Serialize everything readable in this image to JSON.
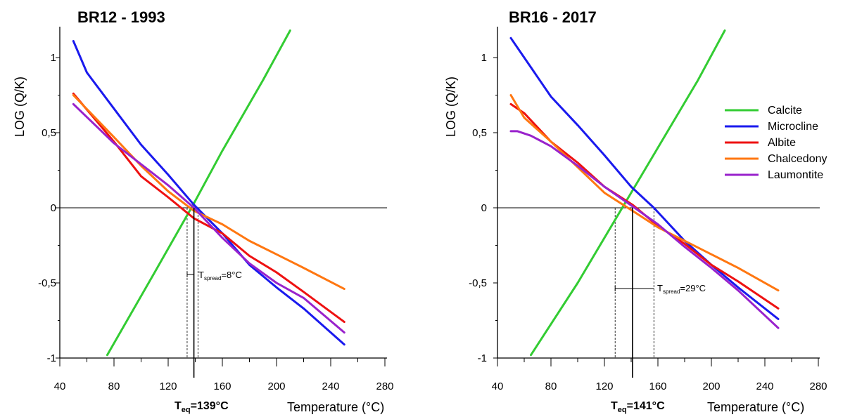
{
  "chart_data": [
    {
      "type": "line",
      "title": "BR12 - 1993",
      "xlabel": "Temperature (°C)",
      "ylabel": "LOG (Q/K)",
      "xlim": [
        40,
        280
      ],
      "ylim": [
        -1,
        1.2
      ],
      "xticks": [
        "40",
        "80",
        "120",
        "160",
        "200",
        "240",
        "280"
      ],
      "yticks": [
        "-1",
        "-0,5",
        "0",
        "0,5",
        "1"
      ],
      "series": [
        {
          "name": "Calcite",
          "color": "#33cc33",
          "points": [
            [
              75,
              -0.98
            ],
            [
              110,
              -0.43
            ],
            [
              139,
              0.03
            ],
            [
              160,
              0.38
            ],
            [
              190,
              0.85
            ],
            [
              210,
              1.18
            ]
          ]
        },
        {
          "name": "Microcline",
          "color": "#1a1aee",
          "points": [
            [
              50,
              1.11
            ],
            [
              60,
              0.9
            ],
            [
              80,
              0.66
            ],
            [
              100,
              0.42
            ],
            [
              120,
              0.22
            ],
            [
              139,
              0.02
            ],
            [
              160,
              -0.17
            ],
            [
              180,
              -0.38
            ],
            [
              200,
              -0.53
            ],
            [
              220,
              -0.67
            ],
            [
              250,
              -0.91
            ]
          ]
        },
        {
          "name": "Albite",
          "color": "#ee1111",
          "points": [
            [
              50,
              0.76
            ],
            [
              80,
              0.44
            ],
            [
              100,
              0.21
            ],
            [
              120,
              0.07
            ],
            [
              139,
              -0.07
            ],
            [
              160,
              -0.17
            ],
            [
              180,
              -0.32
            ],
            [
              200,
              -0.43
            ],
            [
              220,
              -0.56
            ],
            [
              250,
              -0.76
            ]
          ]
        },
        {
          "name": "Chalcedony",
          "color": "#ff7711",
          "points": [
            [
              50,
              0.75
            ],
            [
              80,
              0.47
            ],
            [
              100,
              0.28
            ],
            [
              120,
              0.11
            ],
            [
              139,
              -0.02
            ],
            [
              160,
              -0.11
            ],
            [
              180,
              -0.22
            ],
            [
              200,
              -0.31
            ],
            [
              220,
              -0.4
            ],
            [
              250,
              -0.54
            ]
          ]
        },
        {
          "name": "Laumontite",
          "color": "#9922cc",
          "points": [
            [
              50,
              0.69
            ],
            [
              80,
              0.43
            ],
            [
              100,
              0.29
            ],
            [
              120,
              0.15
            ],
            [
              139,
              0.0
            ],
            [
              160,
              -0.2
            ],
            [
              180,
              -0.37
            ],
            [
              200,
              -0.5
            ],
            [
              220,
              -0.6
            ],
            [
              250,
              -0.83
            ]
          ]
        }
      ],
      "teq_value": 139,
      "teq_label": "eq",
      "teq_text": "=139°C",
      "spread_range": [
        134,
        142
      ],
      "spread_label": "spread",
      "spread_text": "=8°C",
      "legend": false
    },
    {
      "type": "line",
      "title": "BR16 - 2017",
      "xlabel": "Temperature (°C)",
      "ylabel": "LOG (Q/K)",
      "xlim": [
        40,
        280
      ],
      "ylim": [
        -1,
        1.2
      ],
      "xticks": [
        "40",
        "80",
        "120",
        "160",
        "200",
        "240",
        "280"
      ],
      "yticks": [
        "-1",
        "-0,5",
        "0",
        "0,5",
        "1"
      ],
      "series": [
        {
          "name": "Calcite",
          "color": "#33cc33",
          "points": [
            [
              65,
              -0.98
            ],
            [
              100,
              -0.5
            ],
            [
              130,
              -0.05
            ],
            [
              160,
              0.4
            ],
            [
              190,
              0.85
            ],
            [
              210,
              1.18
            ]
          ]
        },
        {
          "name": "Microcline",
          "color": "#1a1aee",
          "points": [
            [
              50,
              1.13
            ],
            [
              60,
              1.0
            ],
            [
              80,
              0.74
            ],
            [
              100,
              0.55
            ],
            [
              120,
              0.35
            ],
            [
              140,
              0.14
            ],
            [
              157,
              0.0
            ],
            [
              180,
              -0.22
            ],
            [
              200,
              -0.38
            ],
            [
              220,
              -0.53
            ],
            [
              250,
              -0.74
            ]
          ]
        },
        {
          "name": "Albite",
          "color": "#ee1111",
          "points": [
            [
              50,
              0.69
            ],
            [
              60,
              0.63
            ],
            [
              80,
              0.44
            ],
            [
              100,
              0.3
            ],
            [
              120,
              0.14
            ],
            [
              141,
              0.02
            ],
            [
              160,
              -0.12
            ],
            [
              180,
              -0.24
            ],
            [
              200,
              -0.38
            ],
            [
              220,
              -0.49
            ],
            [
              250,
              -0.67
            ]
          ]
        },
        {
          "name": "Chalcedony",
          "color": "#ff7711",
          "points": [
            [
              50,
              0.75
            ],
            [
              60,
              0.6
            ],
            [
              80,
              0.44
            ],
            [
              100,
              0.27
            ],
            [
              120,
              0.1
            ],
            [
              141,
              -0.02
            ],
            [
              160,
              -0.13
            ],
            [
              180,
              -0.22
            ],
            [
              200,
              -0.31
            ],
            [
              220,
              -0.4
            ],
            [
              250,
              -0.55
            ]
          ]
        },
        {
          "name": "Laumontite",
          "color": "#9922cc",
          "points": [
            [
              50,
              0.51
            ],
            [
              55,
              0.51
            ],
            [
              65,
              0.48
            ],
            [
              80,
              0.41
            ],
            [
              100,
              0.28
            ],
            [
              120,
              0.14
            ],
            [
              141,
              0.01
            ],
            [
              160,
              -0.11
            ],
            [
              180,
              -0.26
            ],
            [
              200,
              -0.4
            ],
            [
              220,
              -0.55
            ],
            [
              250,
              -0.8
            ]
          ]
        }
      ],
      "teq_value": 141,
      "teq_label": "eq",
      "teq_text": "=141°C",
      "spread_range": [
        128,
        157
      ],
      "spread_label": "spread",
      "spread_text": "=29°C",
      "legend": true,
      "legend_position": "upper-right"
    }
  ]
}
